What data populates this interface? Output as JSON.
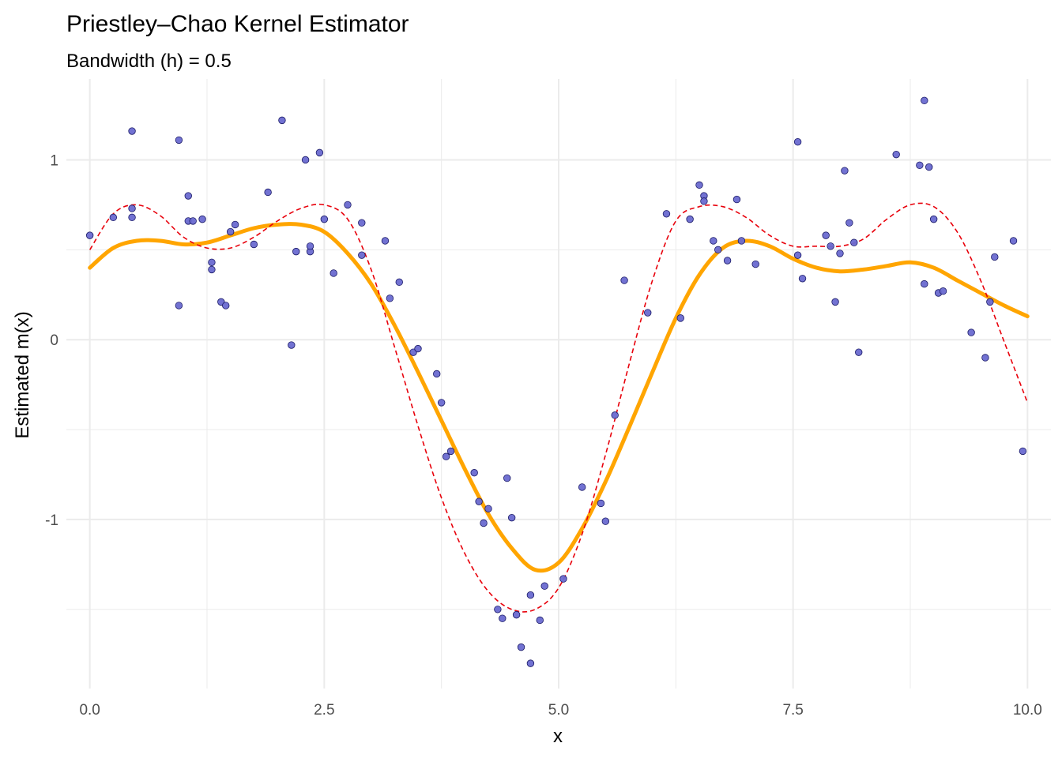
{
  "chart_data": {
    "type": "scatter",
    "title": "Priestley–Chao Kernel Estimator",
    "subtitle": "Bandwidth (h) = 0.5",
    "xlabel": "x",
    "ylabel": "Estimated m(x)",
    "xlim": [
      -0.25,
      10.25
    ],
    "ylim": [
      -1.94,
      1.45
    ],
    "x_ticks": [
      0,
      2.5,
      5,
      7.5,
      10
    ],
    "x_tick_labels": [
      "0.0",
      "2.5",
      "5.0",
      "7.5",
      "10.0"
    ],
    "y_ticks": [
      -1,
      0,
      1
    ],
    "y_tick_labels": [
      "-1",
      "0",
      "1"
    ],
    "grid": true,
    "legend": "none",
    "colors": {
      "points_fill": "#6a6ad0",
      "points_stroke": "#1a1a66",
      "estimate_line": "#ffa500",
      "true_function_line": "#e8000b",
      "grid": "#ebebeb",
      "tick_text": "#4d4d4d"
    },
    "points": {
      "x": [
        0.0,
        0.25,
        0.45,
        0.45,
        0.45,
        0.95,
        0.95,
        1.05,
        1.05,
        1.1,
        1.2,
        1.3,
        1.3,
        1.4,
        1.45,
        1.5,
        1.55,
        1.75,
        1.9,
        2.05,
        2.15,
        2.2,
        2.3,
        2.35,
        2.35,
        2.45,
        2.5,
        2.6,
        2.75,
        2.9,
        2.9,
        3.15,
        3.2,
        3.3,
        3.45,
        3.5,
        3.7,
        3.75,
        3.8,
        3.85,
        4.1,
        4.15,
        4.2,
        4.25,
        4.35,
        4.4,
        4.45,
        4.5,
        4.55,
        4.6,
        4.7,
        4.7,
        4.8,
        4.85,
        5.05,
        5.25,
        5.45,
        5.5,
        5.6,
        5.7,
        5.95,
        6.15,
        6.3,
        6.4,
        6.5,
        6.55,
        6.55,
        6.65,
        6.7,
        6.8,
        6.9,
        6.95,
        7.1,
        7.55,
        7.55,
        7.6,
        7.85,
        7.9,
        7.95,
        8.0,
        8.05,
        8.1,
        8.15,
        8.2,
        8.6,
        8.85,
        8.9,
        8.9,
        8.95,
        9.0,
        9.05,
        9.1,
        9.4,
        9.55,
        9.6,
        9.65,
        9.85,
        9.95
      ],
      "y": [
        0.58,
        0.68,
        1.16,
        0.73,
        0.68,
        1.11,
        0.19,
        0.8,
        0.66,
        0.66,
        0.67,
        0.39,
        0.43,
        0.21,
        0.19,
        0.6,
        0.64,
        0.53,
        0.82,
        1.22,
        -0.03,
        0.49,
        1.0,
        0.49,
        0.52,
        1.04,
        0.67,
        0.37,
        0.75,
        0.65,
        0.47,
        0.55,
        0.23,
        0.32,
        -0.07,
        -0.05,
        -0.19,
        -0.35,
        -0.65,
        -0.62,
        -0.74,
        -0.9,
        -1.02,
        -0.94,
        -1.5,
        -1.55,
        -0.77,
        -0.99,
        -1.53,
        -1.71,
        -1.8,
        -1.42,
        -1.56,
        -1.37,
        -1.33,
        -0.82,
        -0.91,
        -1.01,
        -0.42,
        0.33,
        0.15,
        0.7,
        0.12,
        0.67,
        0.86,
        0.8,
        0.77,
        0.55,
        0.5,
        0.44,
        0.78,
        0.55,
        0.42,
        1.1,
        0.47,
        0.34,
        0.58,
        0.52,
        0.21,
        0.48,
        0.94,
        0.65,
        0.54,
        -0.07,
        1.03,
        0.97,
        0.31,
        1.33,
        0.96,
        0.67,
        0.26,
        0.27,
        0.04,
        -0.1,
        0.21,
        0.46,
        0.55,
        -0.62
      ]
    },
    "series": [
      {
        "style": "solid",
        "x": [
          0.0,
          0.25,
          0.5,
          0.75,
          1.0,
          1.25,
          1.5,
          1.75,
          2.0,
          2.25,
          2.5,
          2.75,
          3.0,
          3.25,
          3.5,
          3.75,
          4.0,
          4.25,
          4.5,
          4.75,
          5.0,
          5.25,
          5.5,
          5.75,
          6.0,
          6.25,
          6.5,
          6.75,
          7.0,
          7.25,
          7.5,
          7.75,
          8.0,
          8.25,
          8.5,
          8.75,
          9.0,
          9.25,
          9.5,
          9.75,
          10.0
        ],
        "y": [
          0.4,
          0.51,
          0.55,
          0.55,
          0.53,
          0.54,
          0.58,
          0.62,
          0.64,
          0.64,
          0.6,
          0.48,
          0.31,
          0.08,
          -0.18,
          -0.45,
          -0.72,
          -0.97,
          -1.16,
          -1.28,
          -1.24,
          -1.05,
          -0.79,
          -0.49,
          -0.18,
          0.12,
          0.36,
          0.51,
          0.55,
          0.52,
          0.45,
          0.4,
          0.38,
          0.39,
          0.41,
          0.43,
          0.4,
          0.33,
          0.26,
          0.19,
          0.13
        ]
      },
      {
        "style": "dashed",
        "x": [
          0.0,
          0.25,
          0.5,
          0.75,
          1.0,
          1.25,
          1.5,
          1.75,
          2.0,
          2.25,
          2.5,
          2.75,
          3.0,
          3.25,
          3.5,
          3.75,
          4.0,
          4.25,
          4.5,
          4.75,
          5.0,
          5.25,
          5.5,
          5.75,
          6.0,
          6.25,
          6.5,
          6.75,
          7.0,
          7.25,
          7.5,
          7.75,
          8.0,
          8.25,
          8.5,
          8.75,
          9.0,
          9.25,
          9.5,
          9.75,
          10.0
        ],
        "y": [
          0.5,
          0.7,
          0.75,
          0.69,
          0.57,
          0.51,
          0.51,
          0.57,
          0.66,
          0.73,
          0.75,
          0.67,
          0.39,
          -0.04,
          -0.48,
          -0.88,
          -1.19,
          -1.4,
          -1.5,
          -1.5,
          -1.38,
          -1.08,
          -0.64,
          -0.14,
          0.33,
          0.66,
          0.74,
          0.74,
          0.68,
          0.58,
          0.52,
          0.52,
          0.52,
          0.56,
          0.67,
          0.75,
          0.74,
          0.6,
          0.33,
          -0.01,
          -0.35
        ]
      }
    ]
  }
}
